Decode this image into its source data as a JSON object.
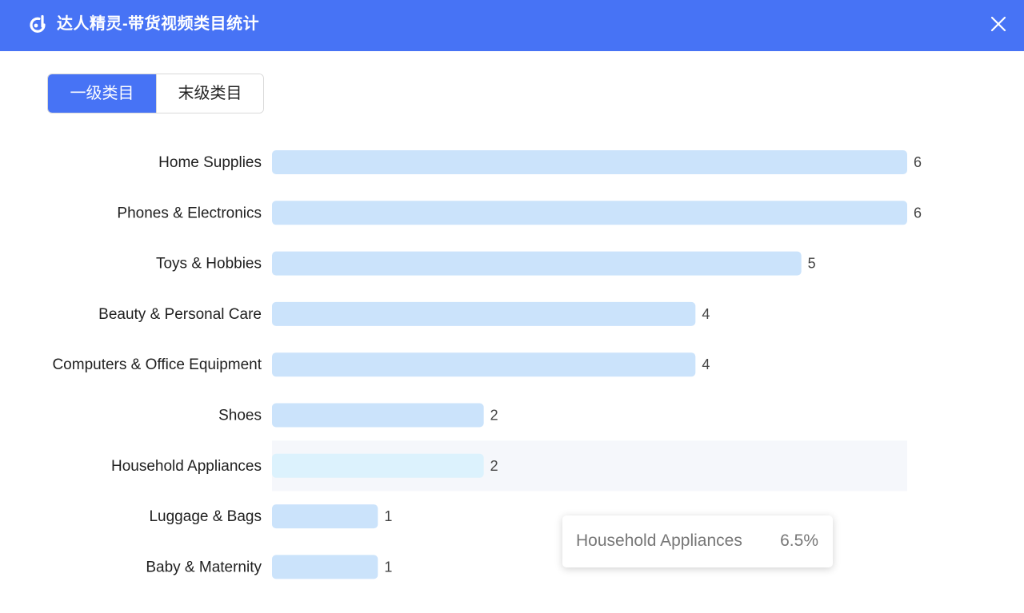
{
  "window": {
    "title": "达人精灵-带货视频类目统计",
    "logo_icon": "daren-logo-icon",
    "close_icon": "close-icon",
    "header_color": "#4773f5"
  },
  "tabs": [
    {
      "label": "一级类目",
      "active": true
    },
    {
      "label": "末级类目",
      "active": false
    }
  ],
  "chart_data": {
    "type": "bar",
    "orientation": "horizontal",
    "categories": [
      "Home Supplies",
      "Phones & Electronics",
      "Toys & Hobbies",
      "Beauty & Personal Care",
      "Computers & Office Equipment",
      "Shoes",
      "Household Appliances",
      "Luggage & Bags",
      "Baby & Maternity"
    ],
    "values": [
      6,
      6,
      5,
      4,
      4,
      2,
      2,
      1,
      1
    ],
    "xlim": [
      0,
      6
    ],
    "grid": false,
    "bar_color": "#cbe3fb",
    "highlight_color": "#dcf2fd",
    "highlighted_category": "Household Appliances"
  },
  "tooltip": {
    "name": "Household Appliances",
    "value": "6.5%"
  }
}
